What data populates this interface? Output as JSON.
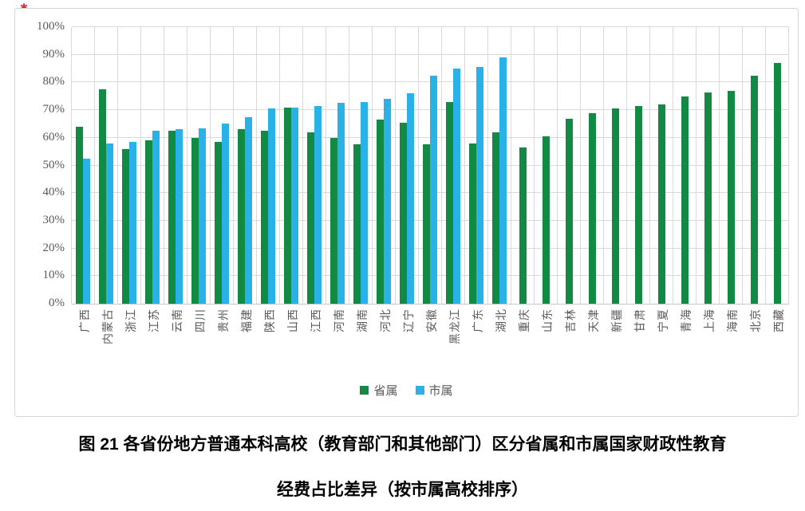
{
  "annotation_mark": "✱",
  "chart_data": {
    "type": "bar",
    "title": "图 21 各省份地方普通本科高校（教育部门和其他部门）区分省属和市属国家财政性教育经费占比差异（按市属高校排序）",
    "caption_line1": "图 21 各省份地方普通本科高校（教育部门和其他部门）区分省属和市属国家财政性教育",
    "caption_line2": "经费占比差异（按市属高校排序）",
    "categories": [
      "广西",
      "内蒙古",
      "浙江",
      "江苏",
      "云南",
      "四川",
      "贵州",
      "福建",
      "陕西",
      "山西",
      "江西",
      "河南",
      "湖南",
      "河北",
      "辽宁",
      "安徽",
      "黑龙江",
      "广东",
      "湖北",
      "重庆",
      "山东",
      "吉林",
      "天津",
      "新疆",
      "甘肃",
      "宁夏",
      "青海",
      "上海",
      "海南",
      "北京",
      "西藏"
    ],
    "series": [
      {
        "name": "省属",
        "color": "#128a43",
        "values": [
          64,
          77.5,
          56,
          59,
          62.5,
          60,
          58.5,
          63,
          62.5,
          71,
          62,
          60,
          57.5,
          66.5,
          65.5,
          57.5,
          73,
          58,
          62,
          56.5,
          60.5,
          67,
          69,
          70.5,
          71.5,
          72,
          75,
          76.5,
          77,
          82.5,
          87
        ]
      },
      {
        "name": "市属",
        "color": "#29b2e8",
        "values": [
          52.5,
          58,
          58.5,
          62.5,
          63,
          63.5,
          65,
          67.5,
          70.5,
          71,
          71.5,
          72.5,
          73,
          74,
          76,
          82.5,
          85,
          85.5,
          89,
          null,
          null,
          null,
          null,
          null,
          null,
          null,
          null,
          null,
          null,
          null,
          null
        ]
      }
    ],
    "y_ticks": [
      "0%",
      "10%",
      "20%",
      "30%",
      "40%",
      "50%",
      "60%",
      "70%",
      "80%",
      "90%",
      "100%"
    ],
    "ylim": [
      0,
      100
    ],
    "xlabel": "",
    "ylabel": "",
    "grid": true,
    "legend_position": "bottom",
    "gridline_color": "#d9d9d9",
    "axis_text_color": "#595959"
  }
}
